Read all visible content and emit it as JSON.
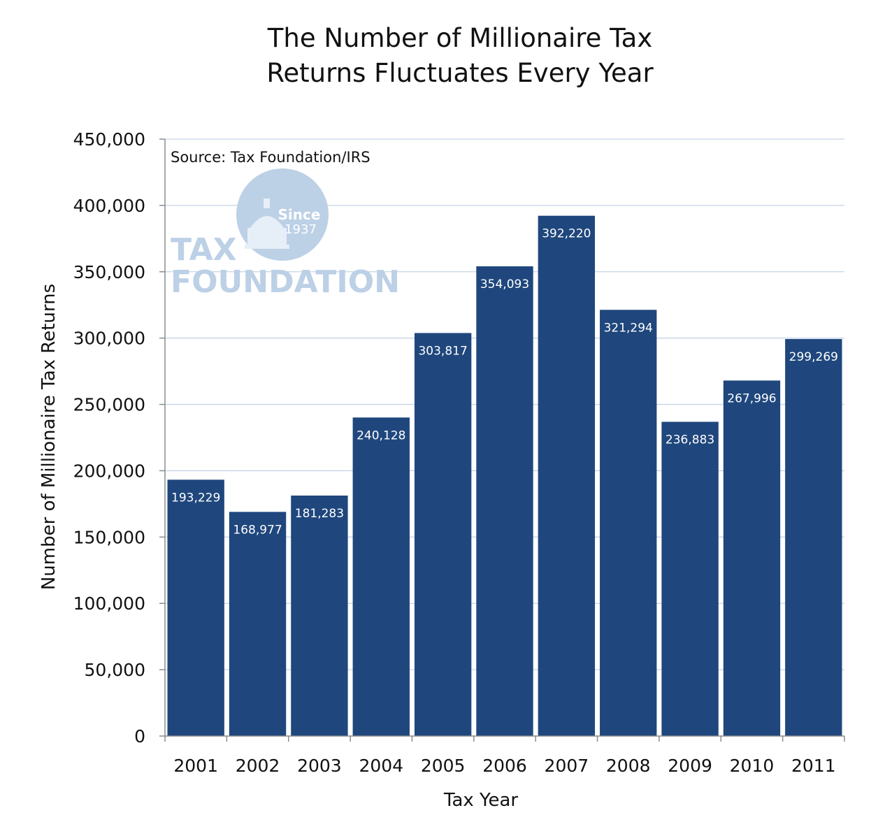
{
  "chart_data": {
    "type": "bar",
    "title_lines": [
      "The Number of Millionaire Tax",
      "Returns Fluctuates Every Year"
    ],
    "xlabel": "Tax Year",
    "ylabel": "Number of Millionaire Tax Returns",
    "source_note": "Source: Tax Foundation/IRS",
    "categories": [
      "2001",
      "2002",
      "2003",
      "2004",
      "2005",
      "2006",
      "2007",
      "2008",
      "2009",
      "2010",
      "2011"
    ],
    "values": [
      193229,
      168977,
      181283,
      240128,
      303817,
      354093,
      392220,
      321294,
      236883,
      267996,
      299269
    ],
    "value_labels": [
      "193,229",
      "168,977",
      "181,283",
      "240,128",
      "303,817",
      "354,093",
      "392,220",
      "321,294",
      "236,883",
      "267,996",
      "299,269"
    ],
    "ylim": [
      0,
      450000
    ],
    "yticks": [
      0,
      50000,
      100000,
      150000,
      200000,
      250000,
      300000,
      350000,
      400000,
      450000
    ],
    "ytick_labels": [
      "0",
      "50,000",
      "100,000",
      "150,000",
      "200,000",
      "250,000",
      "300,000",
      "350,000",
      "400,000",
      "450,000"
    ],
    "grid": true,
    "legend": "none",
    "colors": {
      "bar": "#1f477d",
      "grid": "#c6d4e6",
      "axis": "#8c8c8c"
    }
  },
  "watermark": {
    "logo_line1": "TAX",
    "logo_line2": "FOUNDATION",
    "seal_line1": "Since",
    "seal_line2": "1937",
    "color": "#bcd0e6"
  }
}
